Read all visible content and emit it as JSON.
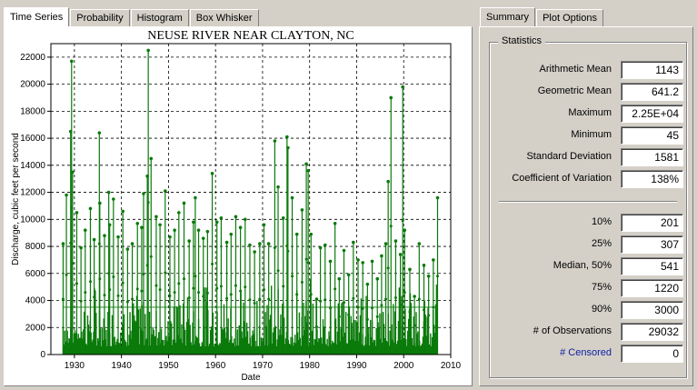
{
  "tabs_left": [
    {
      "label": "Time Series",
      "active": true
    },
    {
      "label": "Probability",
      "active": false
    },
    {
      "label": "Histogram",
      "active": false
    },
    {
      "label": "Box Whisker",
      "active": false
    }
  ],
  "tabs_right": [
    {
      "label": "Summary",
      "active": true
    },
    {
      "label": "Plot Options",
      "active": false
    }
  ],
  "chart_data": {
    "type": "line",
    "title": "NEUSE RIVER NEAR CLAYTON, NC",
    "xlabel": "Date",
    "ylabel": "Discharge, cubic feet per second",
    "xlim": [
      1925,
      2010
    ],
    "ylim": [
      0,
      23000
    ],
    "x_ticks": [
      1930,
      1940,
      1950,
      1960,
      1970,
      1980,
      1990,
      2000,
      2010
    ],
    "y_ticks": [
      0,
      2000,
      4000,
      6000,
      8000,
      10000,
      12000,
      14000,
      16000,
      18000,
      20000,
      22000
    ],
    "grid": true,
    "series": [
      {
        "color": "#0a7a0a",
        "x": [
          1927.6,
          1928.3,
          1929.2,
          1929.4,
          1929.6,
          1930.5,
          1931.4,
          1932.3,
          1933.4,
          1934.2,
          1935.3,
          1935.4,
          1936.4,
          1937.3,
          1937.5,
          1938.3,
          1939.3,
          1940.3,
          1941.3,
          1942.3,
          1943.4,
          1944.3,
          1944.7,
          1945.5,
          1945.7,
          1946.3,
          1947.4,
          1948.2,
          1949.3,
          1950.3,
          1951.3,
          1952.2,
          1953.3,
          1954.4,
          1955.3,
          1955.7,
          1956.4,
          1957.4,
          1958.3,
          1959.3,
          1960.3,
          1961.2,
          1962.4,
          1963.3,
          1964.3,
          1965.3,
          1966.3,
          1967.3,
          1968.3,
          1969.4,
          1970.3,
          1971.3,
          1972.6,
          1973.3,
          1974.4,
          1975.2,
          1975.4,
          1976.3,
          1977.3,
          1978.4,
          1979.3,
          1979.7,
          1980.3,
          1981.5,
          1982.3,
          1983.3,
          1984.4,
          1985.4,
          1986.3,
          1987.3,
          1988.3,
          1989.3,
          1990.3,
          1991.3,
          1992.3,
          1993.3,
          1994.4,
          1995.3,
          1996.2,
          1996.7,
          1997.3,
          1998.3,
          1999.3,
          1999.8,
          2000.2,
          2001.3,
          2002.3,
          2003.3,
          2004.3,
          2005.3,
          2006.3,
          2007.2
        ],
        "y": [
          8200,
          11800,
          16500,
          21700,
          13500,
          10500,
          7900,
          9200,
          10800,
          8500,
          16400,
          11200,
          8800,
          12000,
          9600,
          11500,
          8700,
          10600,
          7800,
          8200,
          9700,
          9400,
          11900,
          13200,
          22500,
          14500,
          10200,
          9600,
          12100,
          8700,
          9200,
          10500,
          11200,
          8400,
          9800,
          11600,
          9200,
          8600,
          9100,
          13400,
          9800,
          10100,
          8300,
          8900,
          10200,
          9400,
          10000,
          8100,
          7600,
          8200,
          9600,
          8200,
          15800,
          12400,
          10100,
          16100,
          15300,
          11600,
          8900,
          10700,
          14100,
          13600,
          8900,
          4100,
          7900,
          8100,
          6900,
          9700,
          5600,
          7700,
          5900,
          8300,
          7000,
          6800,
          5200,
          6900,
          5600,
          7300,
          8200,
          12800,
          19000,
          8400,
          7400,
          19800,
          9200,
          6300,
          4300,
          8200,
          6600,
          5800,
          7000,
          11600
        ]
      }
    ]
  },
  "statistics": {
    "legend": "Statistics",
    "group1": [
      {
        "label": "Arithmetic Mean",
        "value": "1143"
      },
      {
        "label": "Geometric Mean",
        "value": "641.2"
      },
      {
        "label": "Maximum",
        "value": "2.25E+04"
      },
      {
        "label": "Minimum",
        "value": "45"
      },
      {
        "label": "Standard Deviation",
        "value": "1581"
      },
      {
        "label": "Coefficient of Variation",
        "value": "138%"
      }
    ],
    "group2": [
      {
        "label": "10%",
        "value": "201"
      },
      {
        "label": "25%",
        "value": "307"
      },
      {
        "label": "Median, 50%",
        "value": "541"
      },
      {
        "label": "75%",
        "value": "1220"
      },
      {
        "label": "90%",
        "value": "3000"
      },
      {
        "label": "# of Observations",
        "value": "29032"
      },
      {
        "label": "# Censored",
        "value": "0",
        "link": true
      }
    ]
  }
}
